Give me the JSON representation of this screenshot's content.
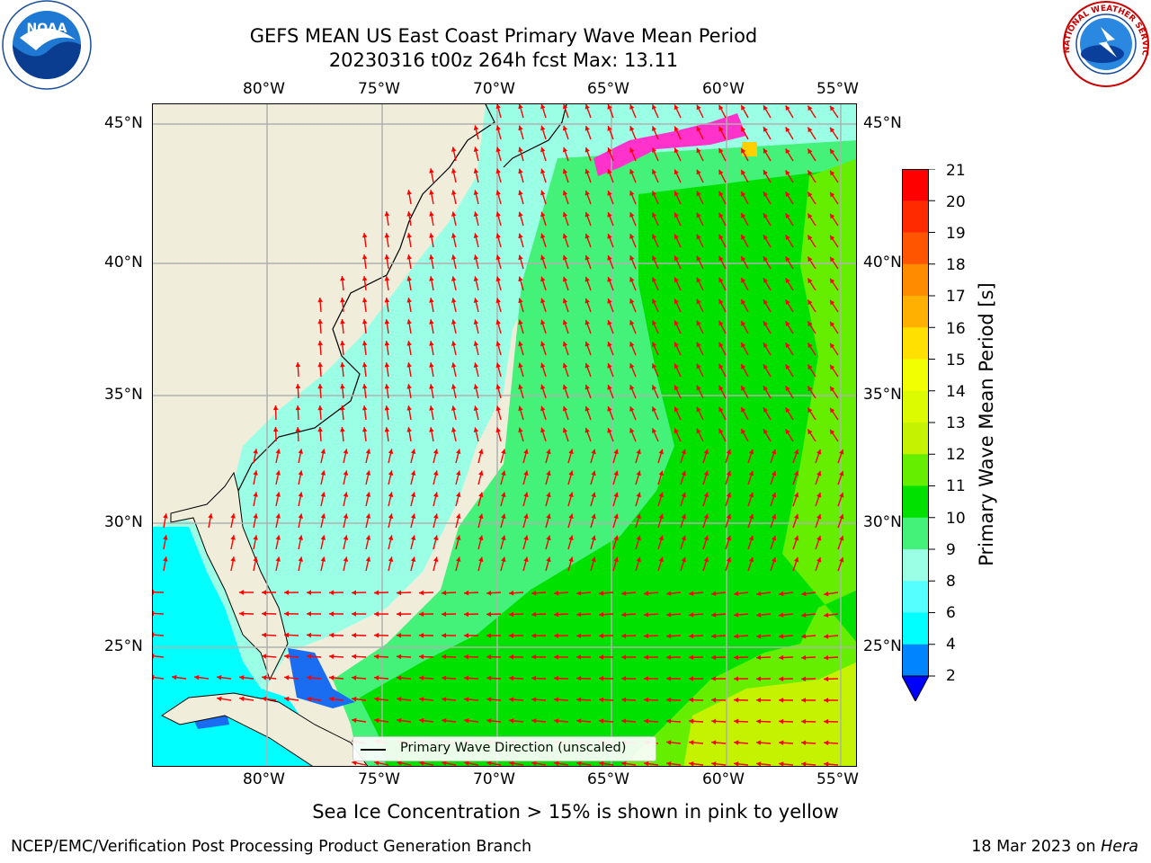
{
  "header": {
    "title_line1": "GEFS MEAN US East Coast Primary Wave Mean Period",
    "title_line2": "20230316 t00z 264h fcst   Max: 13.11"
  },
  "logos": {
    "noaa_text": "NOAA",
    "nws_text": "NATIONAL WEATHER SERVICE"
  },
  "map": {
    "lon_labels": [
      "80°W",
      "75°W",
      "70°W",
      "65°W",
      "60°W",
      "55°W"
    ],
    "lat_labels": [
      "45°N",
      "40°N",
      "35°N",
      "30°N",
      "25°N"
    ],
    "legend_label": "Primary Wave Direction (unscaled)",
    "colors": {
      "land": "#f0eedb",
      "arrow": "#ff0000"
    }
  },
  "colorbar": {
    "label": "Primary Wave Mean Period [s]",
    "ticks": [
      "21",
      "20",
      "19",
      "18",
      "17",
      "16",
      "15",
      "14",
      "13",
      "12",
      "11",
      "10",
      "9",
      "8",
      "6",
      "4",
      "2"
    ],
    "colors": [
      "#ff0000",
      "#ff2a00",
      "#ff5500",
      "#ff8c00",
      "#ffb000",
      "#ffe000",
      "#f2ff00",
      "#dcfa00",
      "#c4f200",
      "#66ee00",
      "#00e100",
      "#44f27a",
      "#9bffe6",
      "#55ffff",
      "#00ffff",
      "#0084ff"
    ],
    "extend_color": "#0000ff"
  },
  "notes": {
    "sea_ice": "Sea Ice Concentration > 15% is shown in pink to yellow"
  },
  "footer": {
    "left": "NCEP/EMC/Verification Post Processing Product Generation Branch",
    "date": "18 Mar 2023 on",
    "machine": "Hera"
  }
}
